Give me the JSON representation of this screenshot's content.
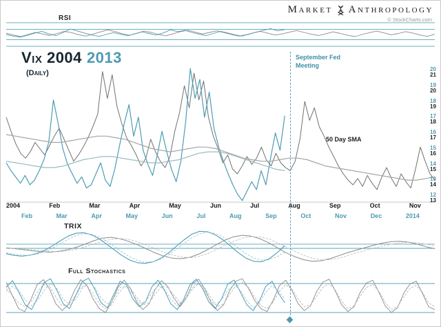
{
  "header": {
    "brand_left": "Market",
    "brand_right": "Anthropology",
    "credit": "© StockCharts.com"
  },
  "panels_labels": {
    "rsi": "RSI",
    "trix": "TRIX",
    "stoch": "Full Stochastics"
  },
  "main": {
    "title_2004": "Vix 2004",
    "title_2013": "2013",
    "subtitle": "(Daily)",
    "fed_annotation": "September Fed Meeting",
    "sma_annotation": "50 Day SMA"
  },
  "colors": {
    "teal": "#4d9ab0",
    "teal_line": "#4c9cb3",
    "gray_line": "#707070",
    "light_gray": "#a5a5a5",
    "dark": "#1b1b1b"
  },
  "chart_data": {
    "type": "line",
    "title": "VIX 2004 vs 2013 (Daily) overlay with RSI, TRIX and Full Stochastics",
    "annotations": [
      "September Fed Meeting",
      "50 Day SMA"
    ],
    "legend_position": "none",
    "x_axis": {
      "months_2004": [
        "2004",
        "Feb",
        "Mar",
        "Apr",
        "May",
        "Jun",
        "Jul",
        "Aug",
        "Sep",
        "Oct",
        "Nov"
      ],
      "months_2013": [
        "Feb",
        "Mar",
        "Apr",
        "May",
        "Jun",
        "Jul",
        "Aug",
        "Sep",
        "Oct",
        "Nov",
        "Dec",
        "2014"
      ]
    },
    "y_axis": {
      "labels_2004": [
        "21",
        "20",
        "19",
        "18",
        "17",
        "16",
        "15",
        "14",
        "13"
      ],
      "labels_2013": [
        "20",
        "19",
        "18",
        "17",
        "16",
        "15",
        "14",
        "13",
        "12"
      ]
    },
    "panels": {
      "rsi": {
        "range": [
          0,
          100
        ],
        "ref_lines": [
          {
            "value": 95,
            "color": "#58a3b8"
          },
          {
            "value": 70,
            "color": "#58a3b8"
          },
          {
            "value": 30,
            "color": "#58a3b8"
          },
          {
            "value": 5,
            "color": "#58a3b8"
          }
        ]
      },
      "main": {
        "range": [
          12.8,
          21.4
        ],
        "ref_lines": [
          {
            "value": 12.8,
            "color": "#b5b5b5",
            "width": 0.7
          }
        ]
      },
      "trix": {
        "range": [
          -1,
          1
        ],
        "ref_lines": [
          {
            "value": 0.28,
            "color": "#58a3b8"
          },
          {
            "value": 0.07,
            "color": "#58a3b8"
          }
        ]
      },
      "stoch": {
        "range": [
          0,
          100
        ],
        "ref_lines": [
          {
            "value": 80,
            "color": "#58a3b8"
          },
          {
            "value": 20,
            "color": "#58a3b8"
          }
        ]
      }
    },
    "series": [
      {
        "name": "vix-2004",
        "panel": "main",
        "color": "#707070",
        "width": 1,
        "x_span": [
          0,
          1
        ],
        "range": [
          12.8,
          21.4
        ],
        "values": [
          18.2,
          17.3,
          16.5,
          15.9,
          15.6,
          16.0,
          16.6,
          16.2,
          15.8,
          16.4,
          17.0,
          17.5,
          16.8,
          16.1,
          15.4,
          15.8,
          16.3,
          16.9,
          17.6,
          18.4,
          21.1,
          19.4,
          20.9,
          18.9,
          17.8,
          16.9,
          16.4,
          15.8,
          15.1,
          15.6,
          16.8,
          16.0,
          15.4,
          15.0,
          15.7,
          17.3,
          18.5,
          20.2,
          18.8,
          21.0,
          19.3,
          20.5,
          18.2,
          17.0,
          16.2,
          15.3,
          15.8,
          14.9,
          14.6,
          15.1,
          15.7,
          15.2,
          15.6,
          16.3,
          15.5,
          15.1,
          15.9,
          15.3,
          15.0,
          14.8,
          15.4,
          16.8,
          19.2,
          18.0,
          18.8,
          17.6,
          17.0,
          16.3,
          15.7,
          15.1,
          14.6,
          14.2,
          13.9,
          14.3,
          13.8,
          14.5,
          14.0,
          13.6,
          14.4,
          15.0,
          14.3,
          13.8,
          14.6,
          14.1,
          13.7,
          14.9,
          16.3,
          15.4,
          14.6,
          14.2
        ]
      },
      {
        "name": "vix-2013",
        "panel": "main",
        "color": "#4c9cb3",
        "width": 1.2,
        "x_span": [
          0,
          0.65
        ],
        "range": [
          11.8,
          20.4
        ],
        "values": [
          14.3,
          13.8,
          13.4,
          13.0,
          13.5,
          12.9,
          13.2,
          13.8,
          14.5,
          15.6,
          18.3,
          16.8,
          15.2,
          14.2,
          13.6,
          13.0,
          13.4,
          12.7,
          12.9,
          13.6,
          14.3,
          13.2,
          12.8,
          13.9,
          15.4,
          16.8,
          18.0,
          16.0,
          17.2,
          15.1,
          14.2,
          13.5,
          14.8,
          16.3,
          15.0,
          13.9,
          13.1,
          14.4,
          16.9,
          20.3,
          18.4,
          19.6,
          17.2,
          18.8,
          16.5,
          15.3,
          14.4,
          13.6,
          12.9,
          12.3,
          11.9,
          12.5,
          13.1,
          12.6,
          13.8,
          12.9,
          14.6,
          16.2,
          15.1,
          17.3
        ]
      },
      {
        "name": "sma50-2004",
        "panel": "main",
        "color": "#a5a5a5",
        "width": 1.2,
        "x_span": [
          0,
          1
        ],
        "range": [
          12.8,
          21.4
        ],
        "values": [
          17.1,
          17.0,
          16.9,
          16.8,
          16.7,
          16.6,
          16.6,
          16.7,
          16.8,
          16.9,
          17.0,
          17.0,
          16.9,
          16.8,
          16.6,
          16.4,
          16.2,
          16.1,
          16.0,
          16.1,
          16.2,
          16.3,
          16.3,
          16.2,
          16.0,
          15.8,
          15.6,
          15.5,
          15.4,
          15.4,
          15.5,
          15.6,
          15.6,
          15.5,
          15.3,
          15.1,
          15.0,
          14.9,
          14.8,
          14.7,
          14.6,
          14.5,
          14.4,
          14.3,
          14.2,
          14.2,
          14.3,
          14.4
        ]
      },
      {
        "name": "sma50-2013",
        "panel": "main",
        "color": "#9db9c0",
        "width": 1.2,
        "x_span": [
          0,
          0.65
        ],
        "range": [
          11.8,
          20.4
        ],
        "values": [
          14.4,
          14.3,
          14.2,
          14.1,
          14.0,
          14.0,
          14.1,
          14.3,
          14.5,
          14.6,
          14.7,
          14.7,
          14.6,
          14.5,
          14.4,
          14.3,
          14.3,
          14.4,
          14.5,
          14.7,
          14.9,
          15.0,
          15.0,
          14.9,
          14.7,
          14.5,
          14.3,
          14.1,
          13.9,
          13.8
        ]
      },
      {
        "name": "rsi-2004",
        "panel": "rsi",
        "color": "#8a8a8a",
        "width": 0.9,
        "x_span": [
          0,
          1
        ],
        "range": [
          0,
          100
        ],
        "values": [
          55,
          48,
          42,
          50,
          58,
          52,
          46,
          54,
          62,
          57,
          49,
          44,
          52,
          60,
          68,
          61,
          53,
          47,
          55,
          63,
          58,
          50,
          45,
          53,
          61,
          66,
          59,
          52,
          58,
          64,
          57,
          50,
          44,
          49,
          56,
          62,
          55,
          48,
          52,
          59,
          65,
          58,
          51,
          46,
          53,
          60,
          54,
          47,
          42,
          50,
          57,
          63,
          56,
          49,
          54,
          61,
          55,
          48,
          43,
          51
        ]
      },
      {
        "name": "rsi-2013",
        "panel": "rsi",
        "color": "#4c9cb3",
        "width": 0.9,
        "x_span": [
          0,
          0.65
        ],
        "range": [
          0,
          100
        ],
        "values": [
          50,
          44,
          40,
          47,
          55,
          62,
          52,
          46,
          58,
          71,
          63,
          55,
          48,
          43,
          50,
          57,
          51,
          45,
          52,
          60,
          54,
          48,
          56,
          68,
          61,
          66,
          58,
          51,
          46,
          54,
          62,
          56,
          49,
          44,
          51,
          59,
          66,
          72,
          64,
          69
        ]
      },
      {
        "name": "trix-2004",
        "panel": "trix",
        "color": "#8a8a8a",
        "width": 1,
        "x_span": [
          0,
          1
        ],
        "range": [
          -1,
          1
        ],
        "values": [
          0.1,
          0.05,
          0.0,
          -0.05,
          -0.1,
          -0.12,
          -0.08,
          0.0,
          0.12,
          0.28,
          0.45,
          0.58,
          0.62,
          0.55,
          0.42,
          0.25,
          0.05,
          -0.15,
          -0.32,
          -0.42,
          -0.45,
          -0.38,
          -0.22,
          0.0,
          0.25,
          0.48,
          0.65,
          0.72,
          0.68,
          0.55,
          0.35,
          0.1,
          -0.15,
          -0.35,
          -0.5,
          -0.58,
          -0.55,
          -0.45,
          -0.3,
          -0.15,
          -0.02,
          0.1,
          0.22,
          0.33,
          0.4,
          0.42,
          0.38,
          0.28,
          0.15,
          0.05
        ]
      },
      {
        "name": "trix-2004-signal",
        "panel": "trix",
        "color": "#bdbdbd",
        "width": 0.9,
        "dash": "3,2",
        "x_span": [
          0,
          1
        ],
        "range": [
          -1,
          1
        ],
        "values": [
          0.08,
          0.06,
          0.03,
          0.0,
          -0.04,
          -0.08,
          -0.1,
          -0.06,
          0.02,
          0.14,
          0.28,
          0.42,
          0.52,
          0.56,
          0.52,
          0.4,
          0.24,
          0.05,
          -0.12,
          -0.26,
          -0.36,
          -0.4,
          -0.34,
          -0.2,
          0.0,
          0.22,
          0.42,
          0.58,
          0.66,
          0.64,
          0.54,
          0.36,
          0.14,
          -0.08,
          -0.28,
          -0.42,
          -0.5,
          -0.5,
          -0.42,
          -0.3,
          -0.16,
          -0.04,
          0.08,
          0.18,
          0.27,
          0.34,
          0.37,
          0.35,
          0.28,
          0.18
        ]
      },
      {
        "name": "trix-2013",
        "panel": "trix",
        "color": "#4c9cb3",
        "width": 1.1,
        "x_span": [
          0,
          0.65
        ],
        "range": [
          -1,
          1
        ],
        "values": [
          -0.2,
          -0.28,
          -0.32,
          -0.28,
          -0.18,
          -0.02,
          0.2,
          0.45,
          0.68,
          0.82,
          0.85,
          0.75,
          0.55,
          0.28,
          -0.02,
          -0.3,
          -0.52,
          -0.65,
          -0.68,
          -0.6,
          -0.42,
          -0.15,
          0.18,
          0.5,
          0.78,
          0.92,
          0.9,
          0.75,
          0.5,
          0.18,
          -0.15,
          -0.42,
          -0.58,
          -0.6,
          -0.45,
          -0.15,
          0.2
        ]
      },
      {
        "name": "trix-2013-signal",
        "panel": "trix",
        "color": "#9fc4cf",
        "width": 0.9,
        "dash": "3,2",
        "x_span": [
          0,
          0.65
        ],
        "range": [
          -1,
          1
        ],
        "values": [
          -0.15,
          -0.22,
          -0.27,
          -0.28,
          -0.22,
          -0.1,
          0.08,
          0.3,
          0.52,
          0.7,
          0.8,
          0.78,
          0.64,
          0.42,
          0.16,
          -0.12,
          -0.36,
          -0.54,
          -0.62,
          -0.6,
          -0.48,
          -0.26,
          0.02,
          0.32,
          0.6,
          0.8,
          0.88,
          0.82,
          0.64,
          0.38,
          0.08,
          -0.2,
          -0.42,
          -0.52,
          -0.5,
          -0.35,
          -0.12
        ]
      },
      {
        "name": "stoch-2004-k",
        "panel": "stoch",
        "color": "#8a8a8a",
        "width": 0.9,
        "x_span": [
          0,
          1
        ],
        "range": [
          0,
          100
        ],
        "values": [
          82,
          55,
          28,
          22,
          48,
          78,
          88,
          68,
          38,
          24,
          36,
          66,
          88,
          76,
          48,
          28,
          20,
          42,
          72,
          87,
          70,
          42,
          26,
          38,
          68,
          86,
          74,
          50,
          32,
          50,
          80,
          89,
          68,
          40,
          24,
          36,
          66,
          85,
          90,
          70,
          45,
          28,
          22,
          46,
          76,
          87,
          66,
          38,
          24,
          34,
          64,
          83,
          89,
          64,
          36,
          22,
          32,
          62,
          81,
          87,
          62,
          34,
          20,
          30,
          60,
          79,
          85,
          60,
          32,
          26
        ]
      },
      {
        "name": "stoch-2004-d",
        "panel": "stoch",
        "color": "#b3b3b3",
        "width": 0.9,
        "dash": "3,2",
        "x_span": [
          0,
          1
        ],
        "range": [
          0,
          100
        ],
        "values": [
          70,
          55,
          40,
          32,
          42,
          62,
          78,
          74,
          52,
          34,
          36,
          52,
          72,
          76,
          58,
          38,
          28,
          36,
          58,
          74,
          70,
          52,
          36,
          40,
          58,
          74,
          72,
          56,
          40,
          50,
          68,
          80,
          70,
          50,
          32,
          38,
          58,
          76,
          82,
          72,
          52,
          34,
          28,
          42,
          64,
          78,
          68,
          48,
          32,
          36,
          54,
          72,
          80,
          66,
          44,
          28,
          34,
          54,
          72,
          78,
          64,
          42,
          26,
          32,
          52,
          70,
          76,
          62,
          40,
          32
        ]
      },
      {
        "name": "stoch-2013-k",
        "panel": "stoch",
        "color": "#4c9cb3",
        "width": 1,
        "x_span": [
          0,
          0.65
        ],
        "range": [
          0,
          100
        ],
        "values": [
          72,
          86,
          62,
          36,
          26,
          52,
          82,
          90,
          66,
          38,
          28,
          56,
          84,
          91,
          68,
          40,
          30,
          58,
          85,
          77,
          48,
          32,
          42,
          73,
          87,
          66,
          38,
          26,
          46,
          77,
          89,
          70,
          42,
          28,
          48,
          79,
          87,
          62,
          36,
          24,
          44,
          74,
          85,
          60,
          40
        ]
      },
      {
        "name": "stoch-2013-d",
        "panel": "stoch",
        "color": "#9fc4cf",
        "width": 0.9,
        "dash": "3,2",
        "x_span": [
          0,
          0.65
        ],
        "range": [
          0,
          100
        ],
        "values": [
          64,
          74,
          66,
          46,
          34,
          46,
          66,
          80,
          70,
          48,
          36,
          48,
          70,
          82,
          72,
          50,
          38,
          50,
          72,
          74,
          58,
          40,
          42,
          60,
          76,
          68,
          48,
          34,
          44,
          64,
          80,
          72,
          50,
          36,
          46,
          66,
          78,
          66,
          44,
          30,
          40,
          62,
          76,
          64,
          48
        ]
      }
    ]
  }
}
